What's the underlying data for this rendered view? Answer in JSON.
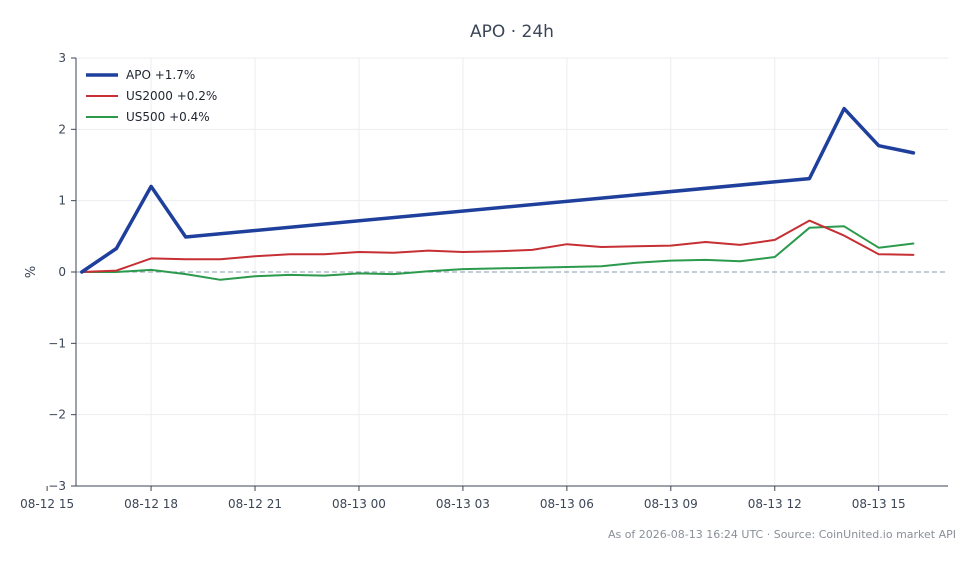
{
  "chart_data": {
    "type": "line",
    "title": "APO · 24h",
    "ylabel": "%",
    "xlabel": "",
    "ylim": [
      -3,
      3
    ],
    "yticks": [
      -3,
      -2,
      -1,
      0,
      1,
      2,
      3
    ],
    "ytick_labels": [
      "−3",
      "−2",
      "−1",
      "0",
      "1",
      "2",
      "3"
    ],
    "xlim": [
      "2026-08-12 15:50",
      "2026-08-13 17:00"
    ],
    "xticks": [
      "2026-08-12 15:00",
      "2026-08-12 18:00",
      "2026-08-12 21:00",
      "2026-08-13 00:00",
      "2026-08-13 03:00",
      "2026-08-13 06:00",
      "2026-08-13 09:00",
      "2026-08-13 12:00",
      "2026-08-13 15:00"
    ],
    "xtick_labels": [
      "08-12 15",
      "08-12 18",
      "08-12 21",
      "08-13 00",
      "08-13 03",
      "08-13 06",
      "08-13 09",
      "08-13 12",
      "08-13 15"
    ],
    "grid": true,
    "zero_line": true,
    "legend_position": "top-left",
    "series": [
      {
        "name": "APO +1.7%",
        "color": "#1f3f9c",
        "x": [
          "2026-08-12 16:00",
          "2026-08-12 17:00",
          "2026-08-12 18:00",
          "2026-08-12 19:00",
          "2026-08-13 13:00",
          "2026-08-13 14:00",
          "2026-08-13 15:00",
          "2026-08-13 16:00"
        ],
        "values": [
          0.0,
          0.33,
          1.2,
          0.49,
          1.31,
          2.29,
          1.77,
          1.67
        ]
      },
      {
        "name": "US2000 +0.2%",
        "color": "#c62f33",
        "x": [
          "2026-08-12 16:00",
          "2026-08-12 17:00",
          "2026-08-12 18:00",
          "2026-08-12 19:00",
          "2026-08-12 20:00",
          "2026-08-12 21:00",
          "2026-08-12 22:00",
          "2026-08-12 23:00",
          "2026-08-13 00:00",
          "2026-08-13 01:00",
          "2026-08-13 02:00",
          "2026-08-13 03:00",
          "2026-08-13 04:00",
          "2026-08-13 05:00",
          "2026-08-13 06:00",
          "2026-08-13 07:00",
          "2026-08-13 08:00",
          "2026-08-13 09:00",
          "2026-08-13 10:00",
          "2026-08-13 11:00",
          "2026-08-13 12:00",
          "2026-08-13 13:00",
          "2026-08-13 14:00",
          "2026-08-13 15:00",
          "2026-08-13 16:00"
        ],
        "values": [
          0.0,
          0.02,
          0.19,
          0.18,
          0.18,
          0.22,
          0.25,
          0.25,
          0.28,
          0.27,
          0.3,
          0.28,
          0.29,
          0.31,
          0.39,
          0.35,
          0.36,
          0.37,
          0.42,
          0.38,
          0.45,
          0.72,
          0.51,
          0.25,
          0.24
        ]
      },
      {
        "name": "US500 +0.4%",
        "color": "#2b9a4c",
        "x": [
          "2026-08-12 16:00",
          "2026-08-12 17:00",
          "2026-08-12 18:00",
          "2026-08-12 19:00",
          "2026-08-12 20:00",
          "2026-08-12 21:00",
          "2026-08-12 22:00",
          "2026-08-12 23:00",
          "2026-08-13 00:00",
          "2026-08-13 01:00",
          "2026-08-13 02:00",
          "2026-08-13 03:00",
          "2026-08-13 04:00",
          "2026-08-13 05:00",
          "2026-08-13 06:00",
          "2026-08-13 07:00",
          "2026-08-13 08:00",
          "2026-08-13 09:00",
          "2026-08-13 10:00",
          "2026-08-13 11:00",
          "2026-08-13 12:00",
          "2026-08-13 13:00",
          "2026-08-13 14:00",
          "2026-08-13 15:00",
          "2026-08-13 16:00"
        ],
        "values": [
          0.0,
          0.0,
          0.03,
          -0.03,
          -0.11,
          -0.06,
          -0.04,
          -0.05,
          -0.02,
          -0.03,
          0.01,
          0.04,
          0.05,
          0.06,
          0.07,
          0.08,
          0.13,
          0.16,
          0.17,
          0.15,
          0.21,
          0.62,
          0.64,
          0.34,
          0.4
        ]
      }
    ],
    "footnote": "As of 2026-08-13 16:24 UTC · Source: CoinUnited.io market API"
  }
}
